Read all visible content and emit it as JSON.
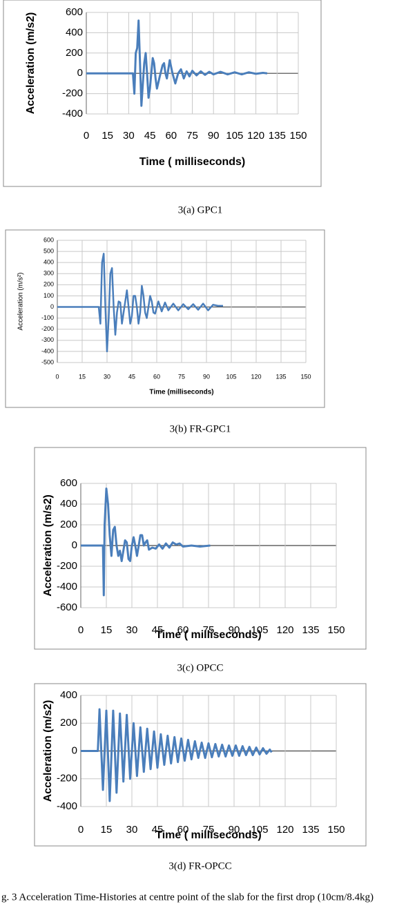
{
  "chart_data": [
    {
      "type": "line",
      "xlabel": "Time ( milliseconds)",
      "ylabel": "Acceleration (m/s2)",
      "caption": "3(a) GPC1",
      "color": "#4a7ebb",
      "grid": true,
      "x": [
        0,
        33,
        34,
        35,
        36,
        37,
        38,
        39,
        40,
        41,
        42,
        43,
        44,
        45,
        46,
        47,
        48,
        49,
        50,
        52,
        54,
        55,
        56,
        57,
        59,
        61,
        63,
        65,
        67,
        69,
        71,
        73,
        75,
        78,
        81,
        84,
        87,
        90,
        95,
        100,
        105,
        110,
        115,
        120,
        125,
        128
      ],
      "values": [
        0,
        0,
        -200,
        200,
        250,
        520,
        100,
        -320,
        -100,
        100,
        200,
        0,
        -240,
        -150,
        0,
        150,
        100,
        -50,
        -150,
        -30,
        80,
        100,
        0,
        -50,
        130,
        0,
        -100,
        0,
        40,
        -50,
        20,
        -30,
        25,
        -20,
        20,
        -15,
        15,
        -10,
        15,
        -10,
        10,
        -10,
        10,
        -5,
        5,
        0
      ],
      "xlim": [
        0,
        150
      ],
      "xticks": [
        0,
        15,
        30,
        45,
        60,
        75,
        90,
        105,
        120,
        135,
        150
      ],
      "ylim": [
        -400,
        600
      ],
      "yticks": [
        -400,
        -200,
        0,
        200,
        400,
        600
      ]
    },
    {
      "type": "line",
      "xlabel": "Time (milliseconds)",
      "ylabel": "Acceleration (m/s²)",
      "caption": "3(b) FR-GPC1",
      "color": "#4a7ebb",
      "grid": true,
      "x": [
        0,
        25,
        26,
        27,
        28,
        29,
        30,
        31,
        32,
        33,
        34,
        35,
        36,
        37,
        38,
        39,
        40,
        41,
        42,
        43,
        44,
        45,
        46,
        47,
        48,
        49,
        50,
        51,
        52,
        53,
        54,
        55,
        56,
        57,
        58,
        59,
        61,
        63,
        65,
        67,
        70,
        73,
        76,
        79,
        82,
        85,
        88,
        91,
        94,
        97,
        100
      ],
      "values": [
        0,
        0,
        -150,
        400,
        480,
        0,
        -400,
        -100,
        300,
        350,
        0,
        -250,
        -50,
        50,
        40,
        -150,
        -50,
        50,
        150,
        0,
        -150,
        -80,
        100,
        100,
        0,
        -150,
        -50,
        190,
        100,
        -50,
        -100,
        0,
        100,
        50,
        -50,
        -60,
        50,
        -40,
        40,
        -30,
        30,
        -30,
        25,
        -20,
        25,
        -25,
        30,
        -30,
        20,
        10,
        10
      ],
      "xlim": [
        0,
        150
      ],
      "xticks": [
        0,
        15,
        30,
        45,
        60,
        75,
        90,
        105,
        120,
        135,
        150
      ],
      "ylim": [
        -500,
        600
      ],
      "yticks": [
        -500,
        -400,
        -300,
        -200,
        -100,
        0,
        100,
        200,
        300,
        400,
        500,
        600
      ]
    },
    {
      "type": "line",
      "xlabel": "Time ( milliseconds)",
      "ylabel": "Acceleration (m/s2)",
      "caption": "3(c) OPCC",
      "color": "#4a7ebb",
      "grid": true,
      "x": [
        0,
        13,
        13.5,
        14,
        15,
        16,
        17,
        18,
        19,
        20,
        21,
        22,
        23,
        24,
        25,
        26,
        27,
        28,
        29,
        30,
        31,
        32,
        33,
        34,
        35,
        36,
        37,
        38,
        39,
        40,
        42,
        44,
        46,
        48,
        50,
        52,
        54,
        56,
        58,
        60,
        65,
        70,
        76
      ],
      "values": [
        0,
        0,
        -480,
        200,
        550,
        400,
        100,
        -100,
        150,
        180,
        0,
        -100,
        -50,
        -150,
        -50,
        50,
        30,
        -130,
        -150,
        0,
        80,
        0,
        -100,
        0,
        100,
        100,
        0,
        30,
        50,
        -40,
        -20,
        -30,
        10,
        -30,
        20,
        -20,
        30,
        10,
        20,
        -10,
        0,
        -10,
        0
      ],
      "xlim": [
        0,
        150
      ],
      "xticks": [
        0,
        15,
        30,
        45,
        60,
        75,
        90,
        105,
        120,
        135,
        150
      ],
      "ylim": [
        -600,
        600
      ],
      "yticks": [
        -600,
        -400,
        -200,
        0,
        200,
        400,
        600
      ]
    },
    {
      "type": "line",
      "xlabel": "Time ( milliseconds)",
      "ylabel": "Acceleration (m/s2)",
      "caption": "3(d) FR-OPCC",
      "color": "#4a7ebb",
      "grid": true,
      "x": [
        0,
        10,
        11,
        13,
        15,
        17,
        19,
        21,
        23,
        25,
        27,
        29,
        31,
        33,
        35,
        37,
        39,
        41,
        43,
        45,
        47,
        49,
        51,
        53,
        55,
        57,
        59,
        61,
        63,
        65,
        67,
        69,
        71,
        73,
        75,
        77,
        79,
        81,
        83,
        85,
        87,
        89,
        91,
        93,
        95,
        97,
        99,
        101,
        103,
        105,
        107,
        109,
        111,
        112
      ],
      "values": [
        0,
        0,
        300,
        -280,
        290,
        -360,
        290,
        -300,
        270,
        -220,
        260,
        -200,
        200,
        -180,
        170,
        -150,
        160,
        -130,
        140,
        -120,
        120,
        -100,
        110,
        -90,
        100,
        -80,
        90,
        -70,
        80,
        -60,
        70,
        -50,
        60,
        -50,
        55,
        -45,
        50,
        -40,
        45,
        -40,
        40,
        -35,
        40,
        -35,
        35,
        -30,
        30,
        -30,
        25,
        -25,
        20,
        -20,
        10,
        -10
      ],
      "xlim": [
        0,
        150
      ],
      "xticks": [
        0,
        15,
        30,
        45,
        60,
        75,
        90,
        105,
        120,
        135,
        150
      ],
      "ylim": [
        -400,
        400
      ],
      "yticks": [
        -400,
        -200,
        0,
        200,
        400
      ]
    }
  ],
  "caption": "g. 3 Acceleration Time-Histories at centre point of the slab for the first drop (10cm/8.4kg)"
}
